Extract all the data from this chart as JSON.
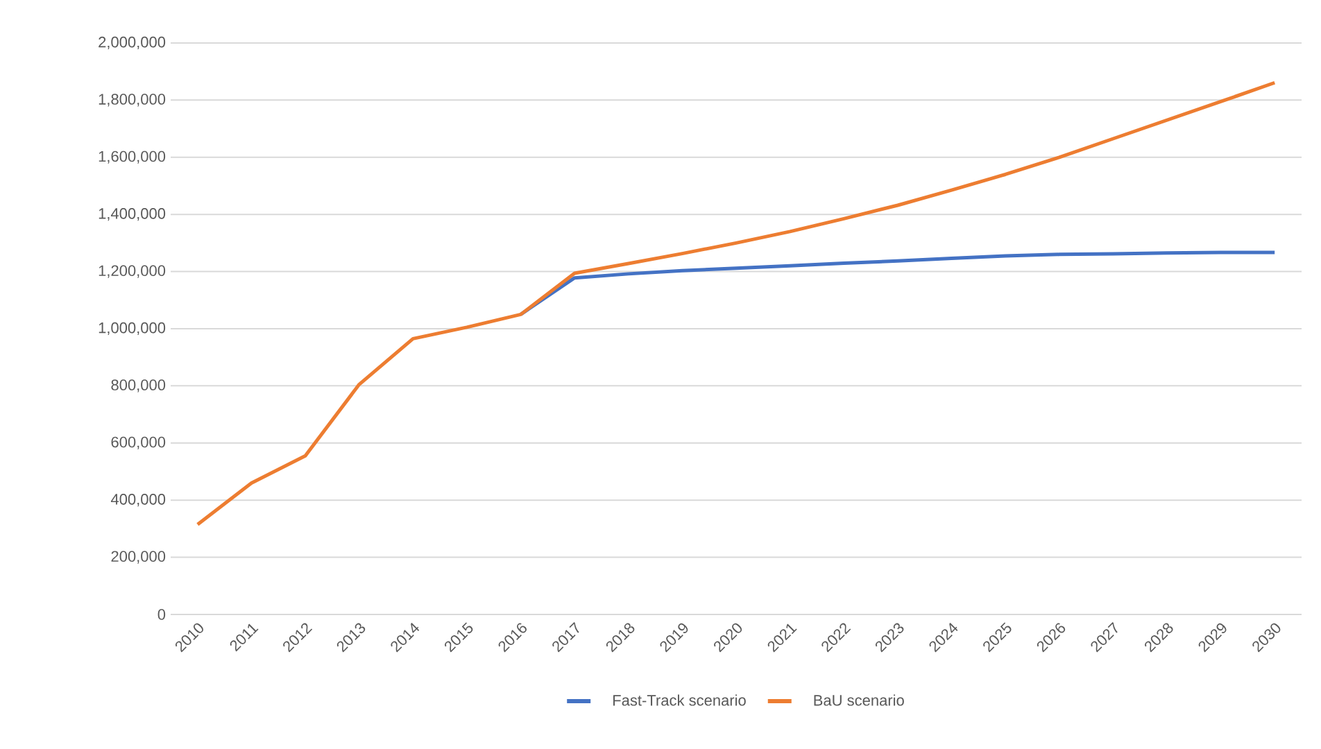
{
  "chart_data": {
    "type": "line",
    "categories": [
      "2010",
      "2011",
      "2012",
      "2013",
      "2014",
      "2015",
      "2016",
      "2017",
      "2018",
      "2019",
      "2020",
      "2021",
      "2022",
      "2023",
      "2024",
      "2025",
      "2026",
      "2027",
      "2028",
      "2029",
      "2030"
    ],
    "series": [
      {
        "name": "Fast-Track scenario",
        "color": "#4472c4",
        "values": [
          null,
          null,
          null,
          null,
          null,
          null,
          1050000,
          1178000,
          1192000,
          1203000,
          1212000,
          1220000,
          1229000,
          1237000,
          1246000,
          1255000,
          1260000,
          1262000,
          1265000,
          1267000,
          1267000
        ]
      },
      {
        "name": "BaU scenario",
        "color": "#ed7d31",
        "values": [
          315000,
          460000,
          555000,
          805000,
          965000,
          1005000,
          1050000,
          1194000,
          1228000,
          1263000,
          1300000,
          1340000,
          1385000,
          1432000,
          1485000,
          1540000,
          1600000,
          1665000,
          1730000,
          1795000,
          1861000
        ]
      }
    ],
    "ylim": [
      0,
      2000000
    ],
    "yticks": [
      0,
      {
        "value": 200000,
        "label": "200,000"
      },
      {
        "value": 400000,
        "label": "400,000"
      },
      {
        "value": 600000,
        "label": "600,000"
      },
      {
        "value": 800000,
        "label": "800,000"
      },
      {
        "value": 1000000,
        "label": "1,000,000"
      },
      {
        "value": 1200000,
        "label": "1,200,000"
      },
      {
        "value": 1400000,
        "label": "1,400,000"
      },
      {
        "value": 1600000,
        "label": "1,600,000"
      },
      {
        "value": 1800000,
        "label": "1,800,000"
      },
      {
        "value": 2000000,
        "label": "2,000,000"
      }
    ],
    "grid": "y",
    "legend": "bottom",
    "marker": "none",
    "line_style": "solid"
  }
}
